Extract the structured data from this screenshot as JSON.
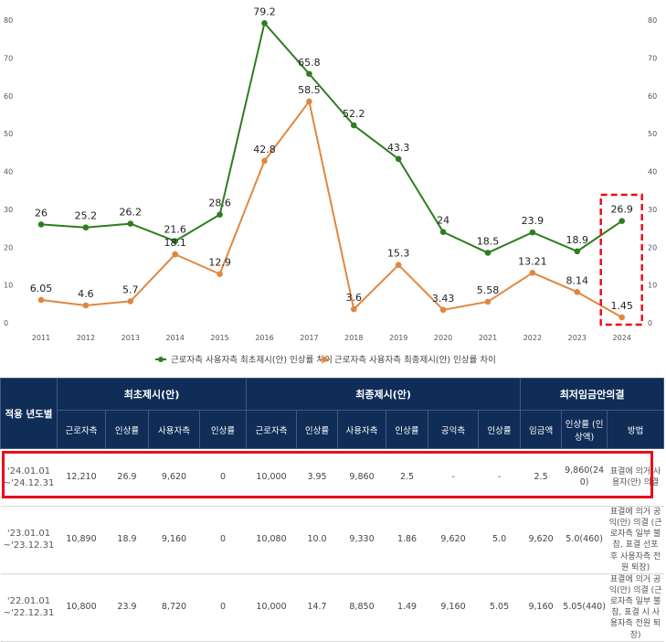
{
  "chart_data": {
    "type": "line",
    "x": [
      "2011",
      "2012",
      "2013",
      "2014",
      "2015",
      "2016",
      "2017",
      "2018",
      "2019",
      "2020",
      "2021",
      "2022",
      "2023",
      "2024"
    ],
    "ylim": [
      0,
      80
    ],
    "yticks": [
      "0",
      "10",
      "20",
      "30",
      "40",
      "50",
      "60",
      "70",
      "80"
    ],
    "series": [
      {
        "name": "근로자측 사용자측 최초제시(안) 인상률 차이",
        "color": "#2e7d1f",
        "values": [
          26,
          25.2,
          26.2,
          21.6,
          28.6,
          79.2,
          65.8,
          52.2,
          43.3,
          24,
          18.5,
          23.9,
          18.9,
          26.9
        ],
        "labels": [
          "26",
          "25.2",
          "26.2",
          "21.6",
          "28.6",
          "79.2",
          "65.8",
          "52.2",
          "43.3",
          "24",
          "18.5",
          "23.9",
          "18.9",
          "26.9"
        ]
      },
      {
        "name": "근로자측 사용자측 최종제시(안) 인상률 차이",
        "color": "#e0873f",
        "values": [
          6.05,
          4.6,
          5.7,
          18.1,
          12.9,
          42.8,
          58.5,
          3.6,
          15.3,
          3.43,
          5.58,
          13.21,
          8.14,
          1.45
        ],
        "labels": [
          "6.05",
          "4.6",
          "5.7",
          "18.1",
          "12.9",
          "42.8",
          "58.5",
          "3.6",
          "15.3",
          "3.43",
          "5.58",
          "13.21",
          "8.14",
          "1.45"
        ]
      }
    ],
    "highlight_category": "2024",
    "highlight_color": "#e8101a",
    "legend_position": "bottom-center",
    "grid": false
  },
  "table": {
    "header_groups": [
      "적용 년도별",
      "최초제시(안)",
      "최종제시(안)",
      "최저임금안의결"
    ],
    "subheaders": [
      "근로자측",
      "인상률",
      "사용자측",
      "인상률",
      "근로자측",
      "인상률",
      "사용자측",
      "인상률",
      "공익측",
      "인상률",
      "임금액",
      "인상률 (인상액)",
      "방법"
    ],
    "rows": [
      {
        "period": "'24.01.01 ~'24.12.31",
        "cells": [
          "12,210",
          "26.9",
          "9,620",
          "0",
          "10,000",
          "3.95",
          "9,860",
          "2.5",
          "-",
          "-",
          "2.5",
          "9,860(240)",
          "표결에 의거 사용자(안) 의결"
        ]
      },
      {
        "period": "'23.01.01 ~'23.12.31",
        "cells": [
          "10,890",
          "18.9",
          "9,160",
          "0",
          "10,080",
          "10.0",
          "9,330",
          "1.86",
          "9,620",
          "5.0",
          "9,620",
          "5.0(460)",
          "표결에 의거 공익(안) 의결 (근로자측 일부 불참, 표결 선포 후 사용자측 전원 퇴장)"
        ]
      },
      {
        "period": "'22.01.01 ~'22.12.31",
        "cells": [
          "10,800",
          "23.9",
          "8,720",
          "0",
          "10,000",
          "14.7",
          "8,850",
          "1.49",
          "9,160",
          "5.05",
          "9,160",
          "5.05(440)",
          "표결에 의거 공익(안) 의결 (근로자측 일부 불참, 표결 시 사용자측 전원 퇴장)"
        ]
      }
    ],
    "header_color": "#0f2d57",
    "highlight_color": "#e8101a"
  }
}
